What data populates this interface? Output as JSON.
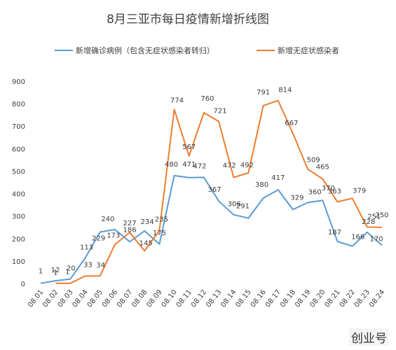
{
  "chart_data": {
    "type": "line",
    "title": "8月三亚市每日疫情新增折线图",
    "categories": [
      "08.01",
      "08.02",
      "08.03",
      "08.04",
      "08.05",
      "08.06",
      "08.07",
      "08.08",
      "08.09",
      "08.10",
      "08.11",
      "08.12",
      "08.13",
      "08.14",
      "08.15",
      "08.16",
      "08.17",
      "08.18",
      "08.19",
      "08.20",
      "08.21",
      "08.22",
      "08.23",
      "08.24"
    ],
    "series": [
      {
        "name": "新增确诊病例（包含无症状感染者转归）",
        "color": "#5b9bd5",
        "values": [
          1,
          12,
          20,
          113,
          229,
          240,
          186,
          234,
          175,
          480,
          471,
          472,
          367,
          306,
          291,
          380,
          417,
          329,
          360,
          370,
          187,
          166,
          228,
          170
        ]
      },
      {
        "name": "新增无症状感染者",
        "color": "#ed7d31",
        "values": [
          null,
          1,
          1,
          33,
          34,
          173,
          227,
          145,
          235,
          774,
          567,
          760,
          721,
          472,
          492,
          791,
          814,
          667,
          509,
          465,
          363,
          379,
          251,
          250
        ]
      }
    ],
    "point_labels": [
      {
        "i": 0,
        "text": "1"
      },
      {
        "i": 1,
        "text": "12"
      },
      {
        "i": 1,
        "text": "1"
      },
      {
        "i": 2,
        "text": "20"
      },
      {
        "i": 2,
        "text": "1"
      },
      {
        "i": 3,
        "text": "113"
      },
      {
        "i": 3,
        "text": "33"
      },
      {
        "i": 4,
        "text": "229"
      },
      {
        "i": 4,
        "text": "34"
      },
      {
        "i": 5,
        "text": "240"
      },
      {
        "i": 5,
        "text": "173"
      },
      {
        "i": 6,
        "text": "186"
      },
      {
        "i": 6,
        "text": "227"
      },
      {
        "i": 7,
        "text": "234"
      },
      {
        "i": 7,
        "text": "145"
      },
      {
        "i": 8,
        "text": "175"
      },
      {
        "i": 8,
        "text": "235"
      },
      {
        "i": 9,
        "text": "480"
      },
      {
        "i": 9,
        "text": "774"
      },
      {
        "i": 10,
        "text": "471"
      },
      {
        "i": 10,
        "text": "567"
      },
      {
        "i": 11,
        "text": "472"
      },
      {
        "i": 11,
        "text": "760"
      },
      {
        "i": 12,
        "text": "367"
      },
      {
        "i": 12,
        "text": "721"
      },
      {
        "i": 13,
        "text": "306"
      },
      {
        "i": 13,
        "text": "472"
      },
      {
        "i": 14,
        "text": "291"
      },
      {
        "i": 14,
        "text": "492"
      },
      {
        "i": 15,
        "text": "380"
      },
      {
        "i": 15,
        "text": "791"
      },
      {
        "i": 16,
        "text": "417"
      },
      {
        "i": 16,
        "text": "814"
      },
      {
        "i": 17,
        "text": "329"
      },
      {
        "i": 17,
        "text": "667"
      },
      {
        "i": 18,
        "text": "360"
      },
      {
        "i": 18,
        "text": "509"
      },
      {
        "i": 19,
        "text": "370"
      },
      {
        "i": 19,
        "text": "465"
      },
      {
        "i": 20,
        "text": "187"
      },
      {
        "i": 20,
        "text": "363"
      },
      {
        "i": 21,
        "text": "166"
      },
      {
        "i": 21,
        "text": "379"
      },
      {
        "i": 22,
        "text": "228"
      },
      {
        "i": 22,
        "text": "251"
      },
      {
        "i": 23,
        "text": "170"
      },
      {
        "i": 23,
        "text": "250"
      }
    ],
    "ylim": [
      0,
      900
    ],
    "yticks": [
      0,
      100,
      200,
      300,
      400,
      500,
      600,
      700,
      800,
      900
    ],
    "xlabel": "",
    "ylabel": "",
    "grid": false,
    "legend": "top"
  },
  "watermark": "创业号"
}
